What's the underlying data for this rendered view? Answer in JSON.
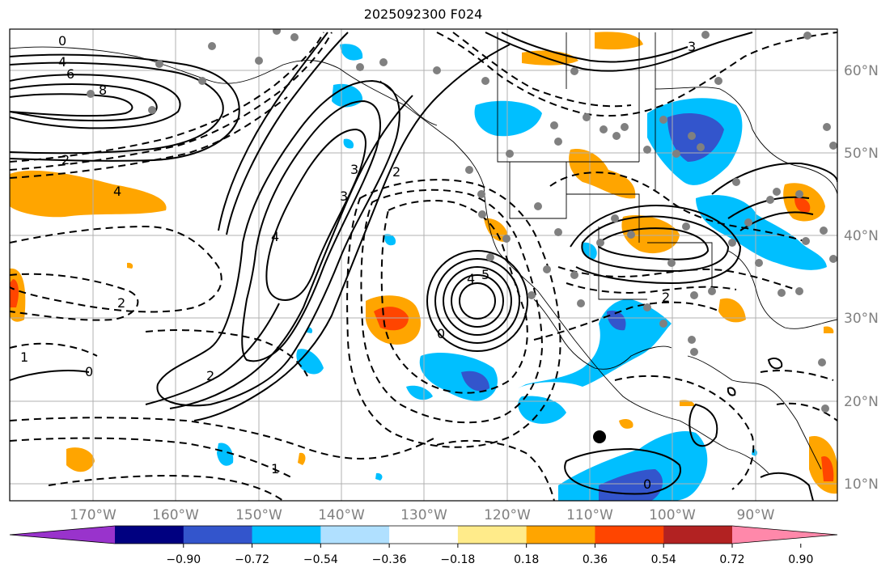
{
  "title": "2025092300 F024",
  "map": {
    "lon_labels": [
      "170°W",
      "160°W",
      "150°W",
      "140°W",
      "130°W",
      "120°W",
      "110°W",
      "100°W",
      "90°W"
    ],
    "lat_labels": [
      "60°N",
      "50°N",
      "40°N",
      "30°N",
      "20°N",
      "10°N"
    ],
    "extent": {
      "lon": [
        -180,
        -80
      ],
      "lat": [
        8,
        65
      ]
    }
  },
  "colorbar": {
    "ticks": [
      "−0.90",
      "−0.72",
      "−0.54",
      "−0.36",
      "−0.18",
      "0.18",
      "0.36",
      "0.54",
      "0.72",
      "0.90"
    ],
    "colors": [
      "#9933cc",
      "#000080",
      "#3355cc",
      "#00bfff",
      "#b0e0ff",
      "#ffffff",
      "#ffeb8a",
      "#ffa500",
      "#ff4500",
      "#b22222",
      "#ff88aa"
    ]
  },
  "contour_labels": [
    "0",
    "4",
    "6",
    "8",
    "2",
    "3",
    "4",
    "1",
    "2",
    "3",
    "4",
    "0",
    "2",
    "1",
    "2",
    "3",
    "4",
    "5",
    "0",
    "2",
    "0"
  ],
  "fill_colors": {
    "orange": "#ffa500",
    "red": "#ff4500",
    "yellow": "#ffeb8a",
    "cyan": "#00bfff",
    "blue": "#3355cc",
    "lightblue": "#b0e0ff"
  }
}
